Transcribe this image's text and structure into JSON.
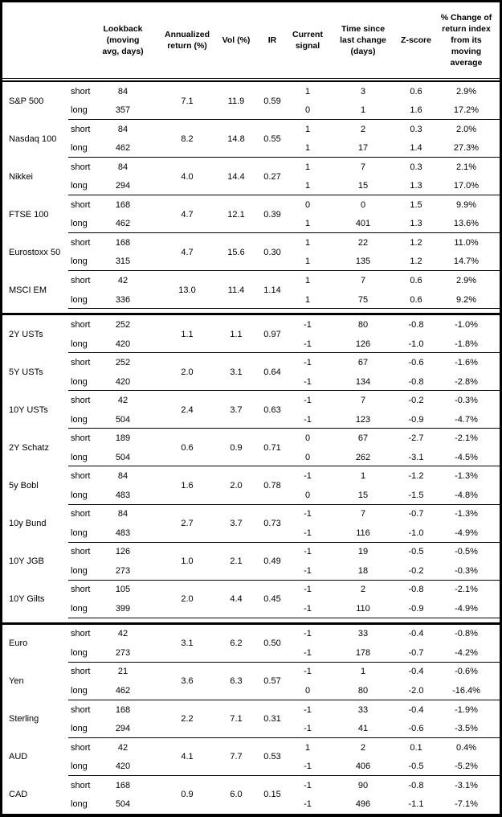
{
  "table": {
    "headers": {
      "asset": "",
      "horizon": "",
      "lookback": "Lookback\n(moving\navg, days)",
      "annualized": "Annualized\nreturn (%)",
      "vol": "Vol (%)",
      "ir": "IR",
      "signal": "Current\nsignal",
      "time": "Time since\nlast change\n(days)",
      "zscore": "Z-score",
      "pct": "% Change of\nreturn index\nfrom its\nmoving\naverage"
    },
    "horizon_labels": {
      "short": "short",
      "long": "long"
    },
    "groups": [
      {
        "asset": "S&P 500",
        "annualized": "7.1",
        "vol": "11.9",
        "ir": "0.59",
        "section_end": false,
        "rows": [
          {
            "horizon": "short",
            "lookback": "84",
            "signal": "1",
            "time": "3",
            "zscore": "0.6",
            "pct": "2.9%"
          },
          {
            "horizon": "long",
            "lookback": "357",
            "signal": "0",
            "time": "1",
            "zscore": "1.6",
            "pct": "17.2%"
          }
        ]
      },
      {
        "asset": "Nasdaq 100",
        "annualized": "8.2",
        "vol": "14.8",
        "ir": "0.55",
        "section_end": false,
        "rows": [
          {
            "horizon": "short",
            "lookback": "84",
            "signal": "1",
            "time": "2",
            "zscore": "0.3",
            "pct": "2.0%"
          },
          {
            "horizon": "long",
            "lookback": "462",
            "signal": "1",
            "time": "17",
            "zscore": "1.4",
            "pct": "27.3%"
          }
        ]
      },
      {
        "asset": "Nikkei",
        "annualized": "4.0",
        "vol": "14.4",
        "ir": "0.27",
        "section_end": false,
        "rows": [
          {
            "horizon": "short",
            "lookback": "84",
            "signal": "1",
            "time": "7",
            "zscore": "0.3",
            "pct": "2.1%"
          },
          {
            "horizon": "long",
            "lookback": "294",
            "signal": "1",
            "time": "15",
            "zscore": "1.3",
            "pct": "17.0%"
          }
        ]
      },
      {
        "asset": "FTSE 100",
        "annualized": "4.7",
        "vol": "12.1",
        "ir": "0.39",
        "section_end": false,
        "rows": [
          {
            "horizon": "short",
            "lookback": "168",
            "signal": "0",
            "time": "0",
            "zscore": "1.5",
            "pct": "9.9%"
          },
          {
            "horizon": "long",
            "lookback": "462",
            "signal": "1",
            "time": "401",
            "zscore": "1.3",
            "pct": "13.6%"
          }
        ]
      },
      {
        "asset": "Eurostoxx 50",
        "annualized": "4.7",
        "vol": "15.6",
        "ir": "0.30",
        "section_end": false,
        "rows": [
          {
            "horizon": "short",
            "lookback": "168",
            "signal": "1",
            "time": "22",
            "zscore": "1.2",
            "pct": "11.0%"
          },
          {
            "horizon": "long",
            "lookback": "315",
            "signal": "1",
            "time": "135",
            "zscore": "1.2",
            "pct": "14.7%"
          }
        ]
      },
      {
        "asset": "MSCI EM",
        "annualized": "13.0",
        "vol": "11.4",
        "ir": "1.14",
        "section_end": true,
        "rows": [
          {
            "horizon": "short",
            "lookback": "42",
            "signal": "1",
            "time": "7",
            "zscore": "0.6",
            "pct": "2.9%"
          },
          {
            "horizon": "long",
            "lookback": "336",
            "signal": "1",
            "time": "75",
            "zscore": "0.6",
            "pct": "9.2%"
          }
        ]
      },
      {
        "asset": "2Y USTs",
        "annualized": "1.1",
        "vol": "1.1",
        "ir": "0.97",
        "section_end": false,
        "rows": [
          {
            "horizon": "short",
            "lookback": "252",
            "signal": "-1",
            "time": "80",
            "zscore": "-0.8",
            "pct": "-1.0%"
          },
          {
            "horizon": "long",
            "lookback": "420",
            "signal": "-1",
            "time": "126",
            "zscore": "-1.0",
            "pct": "-1.8%"
          }
        ]
      },
      {
        "asset": "5Y USTs",
        "annualized": "2.0",
        "vol": "3.1",
        "ir": "0.64",
        "section_end": false,
        "rows": [
          {
            "horizon": "short",
            "lookback": "252",
            "signal": "-1",
            "time": "67",
            "zscore": "-0.6",
            "pct": "-1.6%"
          },
          {
            "horizon": "long",
            "lookback": "420",
            "signal": "-1",
            "time": "134",
            "zscore": "-0.8",
            "pct": "-2.8%"
          }
        ]
      },
      {
        "asset": "10Y USTs",
        "annualized": "2.4",
        "vol": "3.7",
        "ir": "0.63",
        "section_end": false,
        "rows": [
          {
            "horizon": "short",
            "lookback": "42",
            "signal": "-1",
            "time": "7",
            "zscore": "-0.2",
            "pct": "-0.3%"
          },
          {
            "horizon": "long",
            "lookback": "504",
            "signal": "-1",
            "time": "123",
            "zscore": "-0.9",
            "pct": "-4.7%"
          }
        ]
      },
      {
        "asset": "2Y Schatz",
        "annualized": "0.6",
        "vol": "0.9",
        "ir": "0.71",
        "section_end": false,
        "rows": [
          {
            "horizon": "short",
            "lookback": "189",
            "signal": "0",
            "time": "67",
            "zscore": "-2.7",
            "pct": "-2.1%"
          },
          {
            "horizon": "long",
            "lookback": "504",
            "signal": "0",
            "time": "262",
            "zscore": "-3.1",
            "pct": "-4.5%"
          }
        ]
      },
      {
        "asset": "5y Bobl",
        "annualized": "1.6",
        "vol": "2.0",
        "ir": "0.78",
        "section_end": false,
        "rows": [
          {
            "horizon": "short",
            "lookback": "84",
            "signal": "-1",
            "time": "1",
            "zscore": "-1.2",
            "pct": "-1.3%"
          },
          {
            "horizon": "long",
            "lookback": "483",
            "signal": "0",
            "time": "15",
            "zscore": "-1.5",
            "pct": "-4.8%"
          }
        ]
      },
      {
        "asset": "10y Bund",
        "annualized": "2.7",
        "vol": "3.7",
        "ir": "0.73",
        "section_end": false,
        "rows": [
          {
            "horizon": "short",
            "lookback": "84",
            "signal": "-1",
            "time": "7",
            "zscore": "-0.7",
            "pct": "-1.3%"
          },
          {
            "horizon": "long",
            "lookback": "483",
            "signal": "-1",
            "time": "116",
            "zscore": "-1.0",
            "pct": "-4.9%"
          }
        ]
      },
      {
        "asset": "10Y JGB",
        "annualized": "1.0",
        "vol": "2.1",
        "ir": "0.49",
        "section_end": false,
        "rows": [
          {
            "horizon": "short",
            "lookback": "126",
            "signal": "-1",
            "time": "19",
            "zscore": "-0.5",
            "pct": "-0.5%"
          },
          {
            "horizon": "long",
            "lookback": "273",
            "signal": "-1",
            "time": "18",
            "zscore": "-0.2",
            "pct": "-0.3%"
          }
        ]
      },
      {
        "asset": "10Y Gilts",
        "annualized": "2.0",
        "vol": "4.4",
        "ir": "0.45",
        "section_end": true,
        "rows": [
          {
            "horizon": "short",
            "lookback": "105",
            "signal": "-1",
            "time": "2",
            "zscore": "-0.8",
            "pct": "-2.1%"
          },
          {
            "horizon": "long",
            "lookback": "399",
            "signal": "-1",
            "time": "110",
            "zscore": "-0.9",
            "pct": "-4.9%"
          }
        ]
      },
      {
        "asset": "Euro",
        "annualized": "3.1",
        "vol": "6.2",
        "ir": "0.50",
        "section_end": false,
        "rows": [
          {
            "horizon": "short",
            "lookback": "42",
            "signal": "-1",
            "time": "33",
            "zscore": "-0.4",
            "pct": "-0.8%"
          },
          {
            "horizon": "long",
            "lookback": "273",
            "signal": "-1",
            "time": "178",
            "zscore": "-0.7",
            "pct": "-4.2%"
          }
        ]
      },
      {
        "asset": "Yen",
        "annualized": "3.6",
        "vol": "6.3",
        "ir": "0.57",
        "section_end": false,
        "rows": [
          {
            "horizon": "short",
            "lookback": "21",
            "signal": "-1",
            "time": "1",
            "zscore": "-0.4",
            "pct": "-0.6%"
          },
          {
            "horizon": "long",
            "lookback": "462",
            "signal": "0",
            "time": "80",
            "zscore": "-2.0",
            "pct": "-16.4%"
          }
        ]
      },
      {
        "asset": "Sterling",
        "annualized": "2.2",
        "vol": "7.1",
        "ir": "0.31",
        "section_end": false,
        "rows": [
          {
            "horizon": "short",
            "lookback": "168",
            "signal": "-1",
            "time": "33",
            "zscore": "-0.4",
            "pct": "-1.9%"
          },
          {
            "horizon": "long",
            "lookback": "294",
            "signal": "-1",
            "time": "41",
            "zscore": "-0.6",
            "pct": "-3.5%"
          }
        ]
      },
      {
        "asset": "AUD",
        "annualized": "4.1",
        "vol": "7.7",
        "ir": "0.53",
        "section_end": false,
        "rows": [
          {
            "horizon": "short",
            "lookback": "42",
            "signal": "1",
            "time": "2",
            "zscore": "0.1",
            "pct": "0.4%"
          },
          {
            "horizon": "long",
            "lookback": "420",
            "signal": "-1",
            "time": "406",
            "zscore": "-0.5",
            "pct": "-5.2%"
          }
        ]
      },
      {
        "asset": "CAD",
        "annualized": "0.9",
        "vol": "6.0",
        "ir": "0.15",
        "section_end": false,
        "rows": [
          {
            "horizon": "short",
            "lookback": "168",
            "signal": "-1",
            "time": "90",
            "zscore": "-0.8",
            "pct": "-3.1%"
          },
          {
            "horizon": "long",
            "lookback": "504",
            "signal": "-1",
            "time": "496",
            "zscore": "-1.1",
            "pct": "-7.1%"
          }
        ]
      }
    ]
  }
}
